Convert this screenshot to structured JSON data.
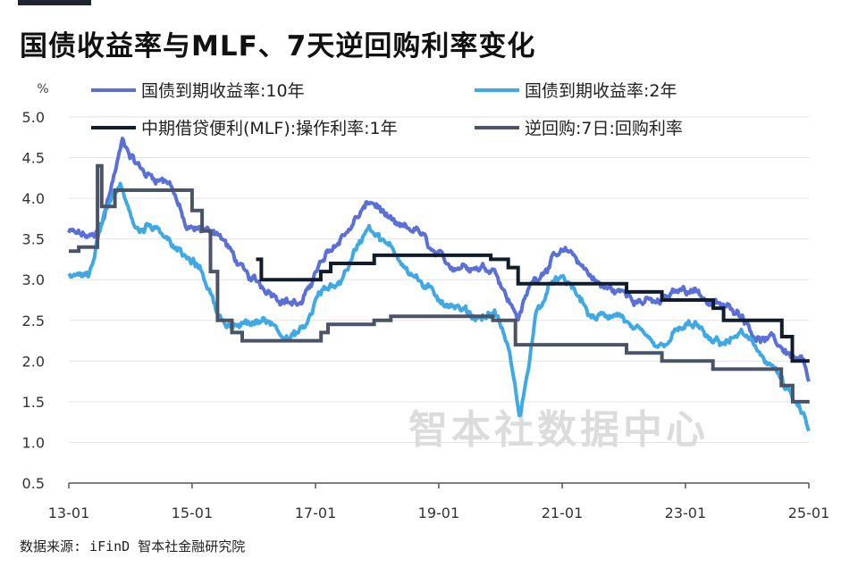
{
  "title": "国债收益率与MLF、7天逆回购利率变化",
  "source": "数据来源: iFinD 智本社金融研究院",
  "watermark": "智本社数据中心",
  "colors": {
    "bond10y": "#5b6fd8",
    "bond2y": "#3fa9e6",
    "mlf": "#111d2b",
    "rr7d": "#4a5466",
    "grid": "#e3e3e3",
    "axis": "#666666"
  },
  "chart_data": {
    "type": "line",
    "ylabel": "%",
    "ylim": [
      0.5,
      5.0
    ],
    "yticks": [
      "5.0",
      "4.5",
      "4.0",
      "3.5",
      "3.0",
      "2.5",
      "2.0",
      "1.5",
      "1.0",
      "0.5"
    ],
    "xlim": [
      "2013-01",
      "2025-01"
    ],
    "xticks": [
      "13-01",
      "15-01",
      "17-01",
      "19-01",
      "21-01",
      "23-01",
      "25-01"
    ],
    "legend_position": "top",
    "grid": true,
    "series": [
      {
        "name": "国债到期收益率:10年",
        "color": "#5b6fd8",
        "style": "noisy",
        "x": [
          "2013-01-01",
          "2013-06-01",
          "2013-08-01",
          "2013-11-15",
          "2014-01-01",
          "2014-04-01",
          "2014-09-01",
          "2014-12-01",
          "2015-03-01",
          "2015-06-01",
          "2015-09-01",
          "2015-12-01",
          "2016-03-01",
          "2016-08-01",
          "2016-10-15",
          "2017-01-01",
          "2017-06-01",
          "2017-11-15",
          "2018-01-01",
          "2018-05-01",
          "2018-09-01",
          "2018-12-01",
          "2019-03-01",
          "2019-07-01",
          "2019-12-01",
          "2020-03-01",
          "2020-04-20",
          "2020-07-01",
          "2020-11-20",
          "2021-03-01",
          "2021-09-01",
          "2021-12-01",
          "2022-03-01",
          "2022-08-01",
          "2022-11-15",
          "2023-03-01",
          "2023-06-01",
          "2023-09-01",
          "2023-12-01",
          "2024-03-01",
          "2024-06-01",
          "2024-09-01",
          "2024-12-01",
          "2025-01-05"
        ],
        "y": [
          3.58,
          3.5,
          3.8,
          4.7,
          4.55,
          4.3,
          4.2,
          3.6,
          3.6,
          3.6,
          3.3,
          3.0,
          2.9,
          2.75,
          2.7,
          3.1,
          3.5,
          3.95,
          3.9,
          3.6,
          3.6,
          3.3,
          3.15,
          3.2,
          3.15,
          2.7,
          2.55,
          2.95,
          3.3,
          3.3,
          2.9,
          2.85,
          2.8,
          2.7,
          2.85,
          2.9,
          2.7,
          2.65,
          2.6,
          2.3,
          2.25,
          2.1,
          2.0,
          1.6
        ]
      },
      {
        "name": "国债到期收益率:2年",
        "color": "#3fa9e6",
        "style": "noisy",
        "x": [
          "2013-01-01",
          "2013-05-01",
          "2013-07-01",
          "2013-11-01",
          "2014-02-01",
          "2014-06-01",
          "2014-11-01",
          "2015-03-01",
          "2015-06-01",
          "2015-09-01",
          "2015-12-01",
          "2016-04-01",
          "2016-08-01",
          "2016-11-01",
          "2017-01-15",
          "2017-06-01",
          "2017-11-15",
          "2018-02-01",
          "2018-05-01",
          "2018-09-01",
          "2018-12-01",
          "2019-04-01",
          "2019-08-01",
          "2019-12-01",
          "2020-02-15",
          "2020-04-25",
          "2020-05-20",
          "2020-08-01",
          "2020-11-20",
          "2021-03-01",
          "2021-07-01",
          "2021-12-01",
          "2022-04-01",
          "2022-08-01",
          "2022-11-15",
          "2023-03-01",
          "2023-06-01",
          "2023-10-01",
          "2023-12-01",
          "2024-03-01",
          "2024-06-01",
          "2024-09-01",
          "2024-12-01",
          "2025-01-05"
        ],
        "y": [
          3.05,
          3.0,
          3.6,
          4.2,
          3.6,
          3.7,
          3.3,
          3.1,
          2.6,
          2.4,
          2.45,
          2.5,
          2.3,
          2.4,
          2.8,
          3.0,
          3.7,
          3.5,
          3.3,
          3.0,
          2.8,
          2.7,
          2.55,
          2.6,
          2.2,
          1.3,
          1.6,
          2.6,
          3.0,
          2.9,
          2.5,
          2.6,
          2.3,
          2.1,
          2.35,
          2.45,
          2.2,
          2.25,
          2.35,
          2.1,
          1.95,
          1.6,
          1.3,
          1.05
        ]
      },
      {
        "name": "中期借贷便利(MLF):操作利率:1年",
        "color": "#111d2b",
        "style": "step",
        "x": [
          "2016-01-15",
          "2016-02-15",
          "2017-02-01",
          "2017-04-01",
          "2017-12-15",
          "2019-11-05",
          "2020-02-17",
          "2020-04-15",
          "2022-01-17",
          "2022-08-15",
          "2023-06-15",
          "2023-08-15",
          "2024-07-25",
          "2024-09-25",
          "2025-01-05"
        ],
        "y": [
          3.25,
          3.0,
          3.1,
          3.2,
          3.3,
          3.25,
          3.15,
          2.95,
          2.85,
          2.75,
          2.65,
          2.5,
          2.3,
          2.0,
          2.0
        ]
      },
      {
        "name": "逆回购:7日:回购利率",
        "color": "#4a5466",
        "style": "step",
        "x": [
          "2013-01-01",
          "2013-03-01",
          "2013-06-20",
          "2013-07-15",
          "2013-10-01",
          "2014-01-01",
          "2015-01-01",
          "2015-03-01",
          "2015-04-20",
          "2015-06-01",
          "2015-08-25",
          "2015-10-25",
          "2016-08-25",
          "2017-02-03",
          "2017-03-16",
          "2017-12-14",
          "2018-03-23",
          "2019-11-18",
          "2020-03-30",
          "2022-01-17",
          "2022-08-15",
          "2023-06-13",
          "2024-07-22",
          "2024-09-27",
          "2025-01-05"
        ],
        "y": [
          3.35,
          3.4,
          4.4,
          3.9,
          4.1,
          4.1,
          3.85,
          3.6,
          3.1,
          2.5,
          2.35,
          2.25,
          2.25,
          2.35,
          2.45,
          2.5,
          2.55,
          2.5,
          2.2,
          2.1,
          2.0,
          1.9,
          1.7,
          1.5,
          1.5
        ]
      }
    ]
  }
}
